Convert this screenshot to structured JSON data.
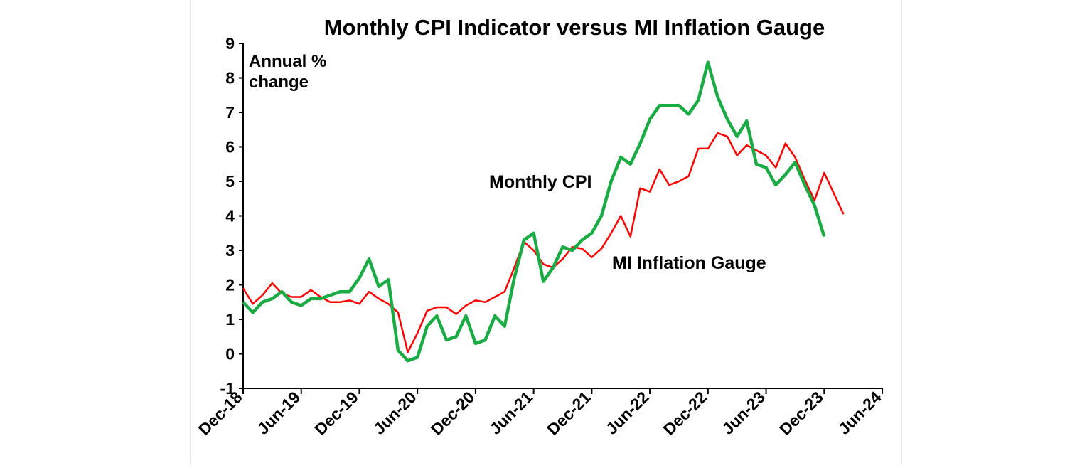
{
  "chart_data": {
    "type": "line",
    "title": "Monthly CPI Indicator versus MI Inflation Gauge",
    "ylabel": "Annual %\nchange",
    "xlabel": "",
    "ylim": [
      -1,
      9
    ],
    "yticks": [
      -1,
      0,
      1,
      2,
      3,
      4,
      5,
      6,
      7,
      8,
      9
    ],
    "x_tick_labels": [
      "Dec-18",
      "Jun-19",
      "Dec-19",
      "Jun-20",
      "Dec-20",
      "Jun-21",
      "Dec-21",
      "Jun-22",
      "Dec-22",
      "Jun-23",
      "Dec-23",
      "Jun-24"
    ],
    "x_range": [
      "Dec-18",
      "Jun-24"
    ],
    "grid": false,
    "legend": "inline labels",
    "series": [
      {
        "name": "Monthly CPI",
        "color": "#1aab45",
        "start": "Dec-18",
        "values": [
          1.5,
          1.2,
          1.5,
          1.6,
          1.8,
          1.5,
          1.4,
          1.6,
          1.6,
          1.7,
          1.8,
          1.8,
          2.2,
          2.75,
          1.95,
          2.15,
          0.1,
          -0.2,
          -0.1,
          0.8,
          1.1,
          0.4,
          0.5,
          1.1,
          0.3,
          0.4,
          1.1,
          0.8,
          2.2,
          3.3,
          3.5,
          2.1,
          2.5,
          3.1,
          3.0,
          3.3,
          3.5,
          4.0,
          5.0,
          5.7,
          5.5,
          6.1,
          6.8,
          7.2,
          7.2,
          7.2,
          6.95,
          7.35,
          8.45,
          7.45,
          6.8,
          6.3,
          6.75,
          5.5,
          5.4,
          4.9,
          5.2,
          5.55,
          4.9,
          4.3,
          3.4
        ]
      },
      {
        "name": "MI Inflation Gauge",
        "color": "#ff0000",
        "start": "Dec-18",
        "values": [
          1.9,
          1.45,
          1.7,
          2.05,
          1.75,
          1.65,
          1.65,
          1.85,
          1.65,
          1.5,
          1.5,
          1.55,
          1.45,
          1.8,
          1.6,
          1.45,
          1.2,
          0.05,
          0.6,
          1.25,
          1.35,
          1.35,
          1.15,
          1.4,
          1.55,
          1.5,
          1.65,
          1.8,
          2.5,
          3.25,
          3.0,
          2.6,
          2.5,
          2.75,
          3.1,
          3.05,
          2.8,
          3.05,
          3.5,
          4.0,
          3.4,
          4.8,
          4.7,
          5.35,
          4.9,
          5.0,
          5.15,
          5.95,
          5.95,
          6.4,
          6.3,
          5.75,
          6.05,
          5.9,
          5.75,
          5.4,
          6.1,
          5.7,
          5.05,
          4.45,
          5.25,
          4.65,
          4.05
        ]
      }
    ],
    "annotations": [
      {
        "text": "Monthly CPI",
        "color": "#1aab45"
      },
      {
        "text": "MI Inflation Gauge",
        "color": "#ff0000"
      }
    ]
  }
}
